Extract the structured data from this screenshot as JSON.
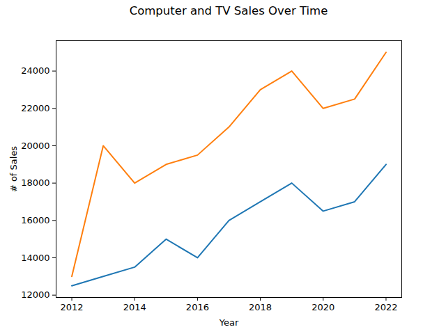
{
  "chart_data": {
    "type": "line",
    "title": "Computer and TV Sales Over Time",
    "x_label": "Year",
    "y_label": "# of Sales",
    "x": [
      2012,
      2013,
      2014,
      2015,
      2016,
      2017,
      2018,
      2019,
      2020,
      2021,
      2022
    ],
    "series": [
      {
        "color": "#1f77b4",
        "values": [
          12500,
          13000,
          13500,
          15000,
          14000,
          16000,
          17000,
          18000,
          16500,
          17000,
          19000
        ]
      },
      {
        "color": "#ff7f0e",
        "values": [
          13000,
          20000,
          18000,
          19000,
          19500,
          21000,
          23000,
          24000,
          22000,
          22500,
          25000
        ]
      }
    ],
    "xlim": [
      2011.5,
      2022.5
    ],
    "xticks": [
      2012,
      2014,
      2016,
      2018,
      2020,
      2022
    ],
    "ylim": [
      11875,
      25625
    ],
    "yticks": [
      12000,
      14000,
      16000,
      18000,
      20000,
      22000,
      24000
    ],
    "grid": false
  }
}
